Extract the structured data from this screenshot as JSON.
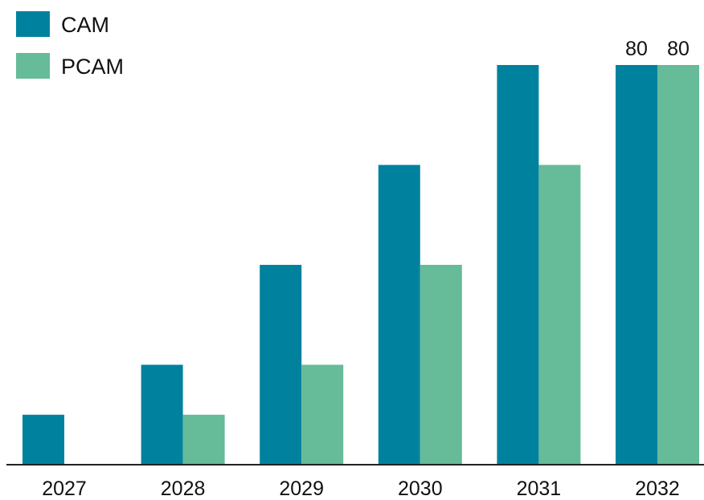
{
  "chart_data": {
    "type": "bar",
    "categories": [
      "2027",
      "2028",
      "2029",
      "2030",
      "2031",
      "2032"
    ],
    "series": [
      {
        "name": "CAM",
        "values": [
          10,
          20,
          40,
          60,
          80,
          80
        ],
        "color": "#00829F"
      },
      {
        "name": "PCAM",
        "values": [
          0,
          10,
          20,
          40,
          60,
          80
        ],
        "color": "#66BB98"
      }
    ],
    "data_labels": [
      {
        "category": "2032",
        "series": "CAM",
        "text": "80"
      },
      {
        "category": "2032",
        "series": "PCAM",
        "text": "80"
      }
    ],
    "ylim": [
      0,
      80
    ],
    "grid": false,
    "y_axis_visible": false,
    "legend": {
      "position": "top-left"
    },
    "title": "",
    "xlabel": "",
    "ylabel": ""
  }
}
